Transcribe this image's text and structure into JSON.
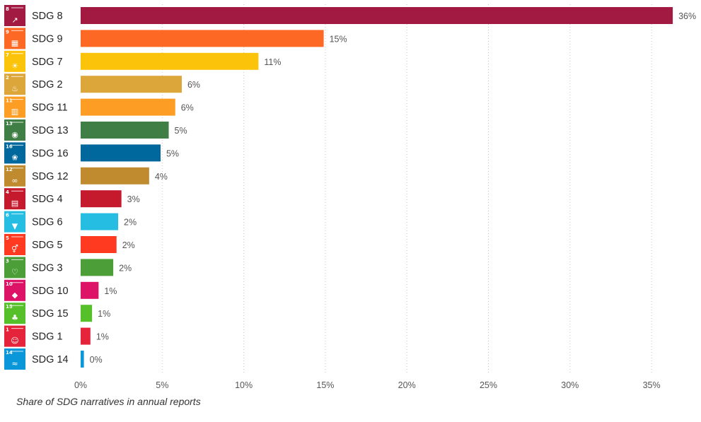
{
  "caption": "Share of SDG narratives in annual reports",
  "chart_data": {
    "type": "bar",
    "orientation": "horizontal",
    "categories": [
      "SDG 8",
      "SDG 9",
      "SDG 7",
      "SDG 2",
      "SDG 11",
      "SDG 13",
      "SDG 16",
      "SDG 12",
      "SDG 4",
      "SDG 6",
      "SDG 5",
      "SDG 3",
      "SDG 10",
      "SDG 15",
      "SDG 1",
      "SDG 14"
    ],
    "icon_numbers": [
      "8",
      "9",
      "7",
      "2",
      "11",
      "13",
      "16",
      "12",
      "4",
      "6",
      "5",
      "3",
      "10",
      "15",
      "1",
      "14"
    ],
    "icon_names": [
      "chart-growth-icon",
      "cube-icon",
      "sun-icon",
      "bowl-icon",
      "city-icon",
      "eye-globe-icon",
      "dove-icon",
      "infinity-icon",
      "book-icon",
      "water-drop-icon",
      "gender-icon",
      "heartbeat-icon",
      "equal-arrows-icon",
      "tree-icon",
      "family-icon",
      "fish-icon"
    ],
    "values": [
      36.3,
      14.9,
      10.9,
      6.2,
      5.8,
      5.4,
      4.9,
      4.2,
      2.5,
      2.3,
      2.2,
      2.0,
      1.1,
      0.7,
      0.6,
      0.2
    ],
    "data_labels": [
      "36%",
      "15%",
      "11%",
      "6%",
      "6%",
      "5%",
      "5%",
      "4%",
      "3%",
      "2%",
      "2%",
      "2%",
      "1%",
      "1%",
      "1%",
      "0%"
    ],
    "colors": [
      "#A21942",
      "#FD6925",
      "#FCC30B",
      "#DDA63A",
      "#FD9D24",
      "#3F7E44",
      "#00689D",
      "#BF8B2E",
      "#C5192D",
      "#26BDE2",
      "#FF3A21",
      "#4C9F38",
      "#DD1367",
      "#56C02B",
      "#E5243B",
      "#0A97D9"
    ],
    "xticks": [
      0,
      5,
      10,
      15,
      20,
      25,
      30,
      35
    ],
    "xtick_labels": [
      "0%",
      "5%",
      "10%",
      "15%",
      "20%",
      "25%",
      "30%",
      "35%"
    ],
    "xlim": [
      0,
      36.5
    ],
    "grid": "vertical dotted",
    "xlabel": "",
    "ylabel": "",
    "title": ""
  }
}
